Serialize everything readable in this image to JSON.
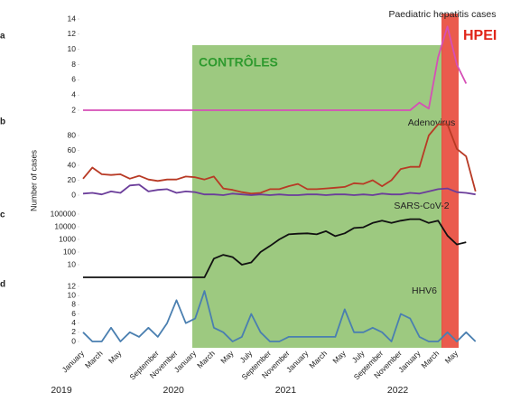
{
  "chart_data": [
    {
      "type": "line",
      "panel": "a",
      "title": "Paediatric hepatitis cases",
      "ylim": [
        2,
        14
      ],
      "yticks": [
        14,
        12,
        10,
        8,
        6,
        4,
        2
      ],
      "log": false,
      "series": [
        {
          "color": "#d64fb6",
          "values": [
            2,
            2,
            2,
            2,
            2,
            2,
            2,
            2,
            2,
            2,
            2,
            2,
            2,
            2,
            2,
            2,
            2,
            2,
            2,
            2,
            2,
            2,
            2,
            2,
            2,
            2,
            2,
            2,
            2,
            2,
            2,
            2,
            2,
            2,
            2,
            2,
            3,
            2.2,
            9,
            13,
            8,
            5.5,
            null
          ]
        }
      ]
    },
    {
      "type": "line",
      "panel": "b",
      "title": "Adenovirus",
      "ylim": [
        0,
        100
      ],
      "yticks": [
        80,
        60,
        40,
        20,
        0
      ],
      "log": false,
      "series": [
        {
          "color": "#b83a25",
          "values": [
            22,
            37,
            28,
            27,
            28,
            22,
            26,
            21,
            19,
            21,
            21,
            25,
            24,
            21,
            25,
            9,
            7,
            4,
            2,
            3,
            8,
            8,
            12,
            15,
            8,
            8,
            9,
            10,
            11,
            16,
            15,
            20,
            12,
            20,
            35,
            38,
            38,
            80,
            95,
            95,
            62,
            52,
            5
          ]
        },
        {
          "color": "#6b3d9a",
          "values": [
            2,
            3,
            1,
            5,
            3,
            13,
            14,
            5,
            7,
            8,
            3,
            5,
            4,
            1,
            1,
            0,
            2,
            1,
            0,
            1,
            0,
            1,
            0,
            0,
            1,
            1,
            0,
            1,
            1,
            0,
            1,
            0,
            2,
            1,
            1,
            3,
            2,
            5,
            8,
            9,
            4,
            3,
            1
          ]
        }
      ]
    },
    {
      "type": "line",
      "panel": "c",
      "title": "SARS-CoV-2",
      "ylim": [
        1,
        100000
      ],
      "yticks": [
        100000,
        10000,
        1000,
        100,
        10
      ],
      "log": true,
      "series": [
        {
          "color": "#111111",
          "values": [
            1,
            1,
            1,
            1,
            1,
            1,
            1,
            1,
            1,
            1,
            1,
            1,
            1,
            1,
            30,
            60,
            40,
            10,
            15,
            100,
            300,
            1000,
            2500,
            2800,
            3000,
            2500,
            4500,
            1800,
            3000,
            8000,
            9000,
            20000,
            30000,
            20000,
            30000,
            40000,
            40000,
            20000,
            30000,
            2000,
            400,
            600,
            null
          ]
        }
      ]
    },
    {
      "type": "line",
      "panel": "d",
      "title": "HHV6",
      "ylim": [
        0,
        12
      ],
      "yticks": [
        12,
        10,
        8,
        6,
        4,
        2,
        0
      ],
      "log": false,
      "series": [
        {
          "color": "#4a7fb0",
          "values": [
            2,
            0,
            0,
            3,
            0,
            2,
            1,
            3,
            1,
            4,
            9,
            4,
            5,
            11,
            3,
            2,
            0,
            1,
            6,
            2,
            0,
            0,
            1,
            1,
            1,
            1,
            1,
            1,
            7,
            2,
            2,
            3,
            2,
            0,
            6,
            5,
            1,
            0,
            0,
            2,
            0,
            2,
            0
          ]
        }
      ],
      "categories": [
        "January",
        null,
        "March",
        null,
        "May",
        null,
        null,
        null,
        "September",
        null,
        "November",
        null,
        "January",
        null,
        "March",
        null,
        "May",
        null,
        "July",
        null,
        "September",
        null,
        "November",
        null,
        "January",
        null,
        "March",
        null,
        "May",
        null,
        "July",
        null,
        "September",
        null,
        "November",
        null,
        "January",
        null,
        "March",
        null,
        "May",
        null,
        null
      ],
      "years": [
        "2019",
        "2020",
        "2021",
        "2022"
      ]
    }
  ],
  "y_label": "Number of cases",
  "annotations": {
    "controls": "CONTRÔLES",
    "hpei": "HPEI"
  }
}
